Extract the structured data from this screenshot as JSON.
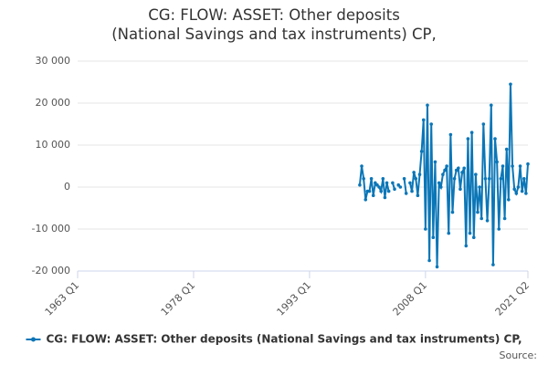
{
  "chart_data": {
    "type": "line",
    "title": "CG: FLOW: ASSET: Other deposits (National Savings and tax instruments) CP,",
    "source": "Source:",
    "categories": [
      "1963 Q1",
      null,
      null,
      null,
      null,
      null,
      null,
      null,
      null,
      null,
      null,
      null,
      null,
      null,
      null,
      null,
      null,
      null,
      null,
      null,
      null,
      null,
      null,
      null,
      null,
      null,
      null,
      null,
      null,
      null,
      null,
      null,
      null,
      null,
      null,
      null,
      null,
      null,
      null,
      null,
      null,
      null,
      null,
      null,
      null,
      null,
      null,
      null,
      null,
      null,
      null,
      null,
      null,
      null,
      null,
      null,
      null,
      null,
      null,
      null,
      "1978 Q1",
      null,
      null,
      null,
      null,
      null,
      null,
      null,
      null,
      null,
      null,
      null,
      null,
      null,
      null,
      null,
      null,
      null,
      null,
      null,
      null,
      null,
      null,
      null,
      null,
      null,
      null,
      null,
      null,
      null,
      null,
      null,
      null,
      null,
      null,
      null,
      null,
      null,
      null,
      null,
      null,
      null,
      null,
      null,
      null,
      null,
      null,
      null,
      null,
      null,
      null,
      null,
      null,
      null,
      null,
      null,
      null,
      null,
      null,
      null,
      "1993 Q1",
      null,
      null,
      null,
      null,
      null,
      null,
      null,
      null,
      null,
      null,
      null,
      null,
      null,
      null,
      null,
      null,
      null,
      null,
      null,
      null,
      null,
      null,
      null,
      null,
      null,
      null,
      null,
      null,
      null,
      null,
      null,
      null,
      null,
      null,
      null,
      null,
      null,
      null,
      null,
      null,
      null,
      null,
      null,
      null,
      null,
      null,
      null,
      null,
      null,
      null,
      null,
      null,
      null,
      null,
      null,
      null,
      null,
      null,
      null,
      "2008 Q1",
      null,
      null,
      null,
      null,
      null,
      null,
      null,
      null,
      null,
      null,
      null,
      null,
      null,
      null,
      null,
      null,
      null,
      null,
      null,
      null,
      null,
      null,
      null,
      null,
      null,
      null,
      null,
      null,
      null,
      null,
      null,
      null,
      null,
      null,
      null,
      null,
      null,
      null,
      null,
      null,
      null,
      null,
      null,
      null,
      null,
      null,
      null,
      null,
      null,
      null,
      null,
      null,
      "2021 Q2"
    ],
    "series": [
      {
        "name": "CG: FLOW: ASSET: Other deposits (National Savings and tax instruments) CP,",
        "color": "#0b76b7",
        "values": [
          null,
          null,
          null,
          null,
          null,
          null,
          null,
          null,
          null,
          null,
          null,
          null,
          null,
          null,
          null,
          null,
          null,
          null,
          null,
          null,
          null,
          null,
          null,
          null,
          null,
          null,
          null,
          null,
          null,
          null,
          null,
          null,
          null,
          null,
          null,
          null,
          null,
          null,
          null,
          null,
          null,
          null,
          null,
          null,
          null,
          null,
          null,
          null,
          null,
          null,
          null,
          null,
          null,
          null,
          null,
          null,
          null,
          null,
          null,
          null,
          null,
          null,
          null,
          null,
          null,
          null,
          null,
          null,
          null,
          null,
          null,
          null,
          null,
          null,
          null,
          null,
          null,
          null,
          null,
          null,
          null,
          null,
          null,
          null,
          null,
          null,
          null,
          null,
          null,
          null,
          null,
          null,
          null,
          null,
          null,
          null,
          null,
          null,
          null,
          null,
          null,
          null,
          null,
          null,
          null,
          null,
          null,
          null,
          null,
          null,
          null,
          null,
          null,
          null,
          null,
          null,
          null,
          null,
          null,
          null,
          null,
          null,
          null,
          null,
          null,
          null,
          null,
          null,
          null,
          null,
          null,
          null,
          null,
          null,
          null,
          null,
          null,
          null,
          null,
          null,
          null,
          null,
          null,
          null,
          null,
          null,
          500,
          5000,
          2000,
          -3000,
          -1000,
          -1000,
          2000,
          -2000,
          1000,
          500,
          0,
          -1000,
          2000,
          -2500,
          1000,
          -1000,
          null,
          1000,
          -500,
          null,
          500,
          0,
          null,
          2000,
          -1500,
          null,
          1000,
          -1000,
          3500,
          2000,
          -2000,
          3000,
          8500,
          16000,
          -10000,
          19500,
          -17500,
          15000,
          -12000,
          6000,
          -19000,
          1000,
          0,
          3000,
          4000,
          5000,
          -11000,
          12500,
          -6000,
          2000,
          4000,
          4500,
          -500,
          3500,
          4500,
          -14000,
          11500,
          -11000,
          13000,
          -12000,
          3000,
          -6000,
          0,
          -7500,
          15000,
          2000,
          -8000,
          2000,
          19500,
          -18500,
          11500,
          6000,
          -10000,
          2000,
          5000,
          -7500,
          9000,
          -3000,
          24500,
          5000,
          -500,
          -1500,
          0,
          5000,
          -1000,
          2000,
          -1500,
          5500
        ]
      }
    ],
    "ylim": [
      -20000,
      30000
    ],
    "yticks": [
      {
        "value": -20000,
        "label": "-20 000"
      },
      {
        "value": -10000,
        "label": "-10 000"
      },
      0,
      {
        "value": 10000,
        "label": "10 000"
      },
      {
        "value": 20000,
        "label": "20 000"
      },
      {
        "value": 30000,
        "label": "30 000"
      }
    ],
    "grid": true
  }
}
